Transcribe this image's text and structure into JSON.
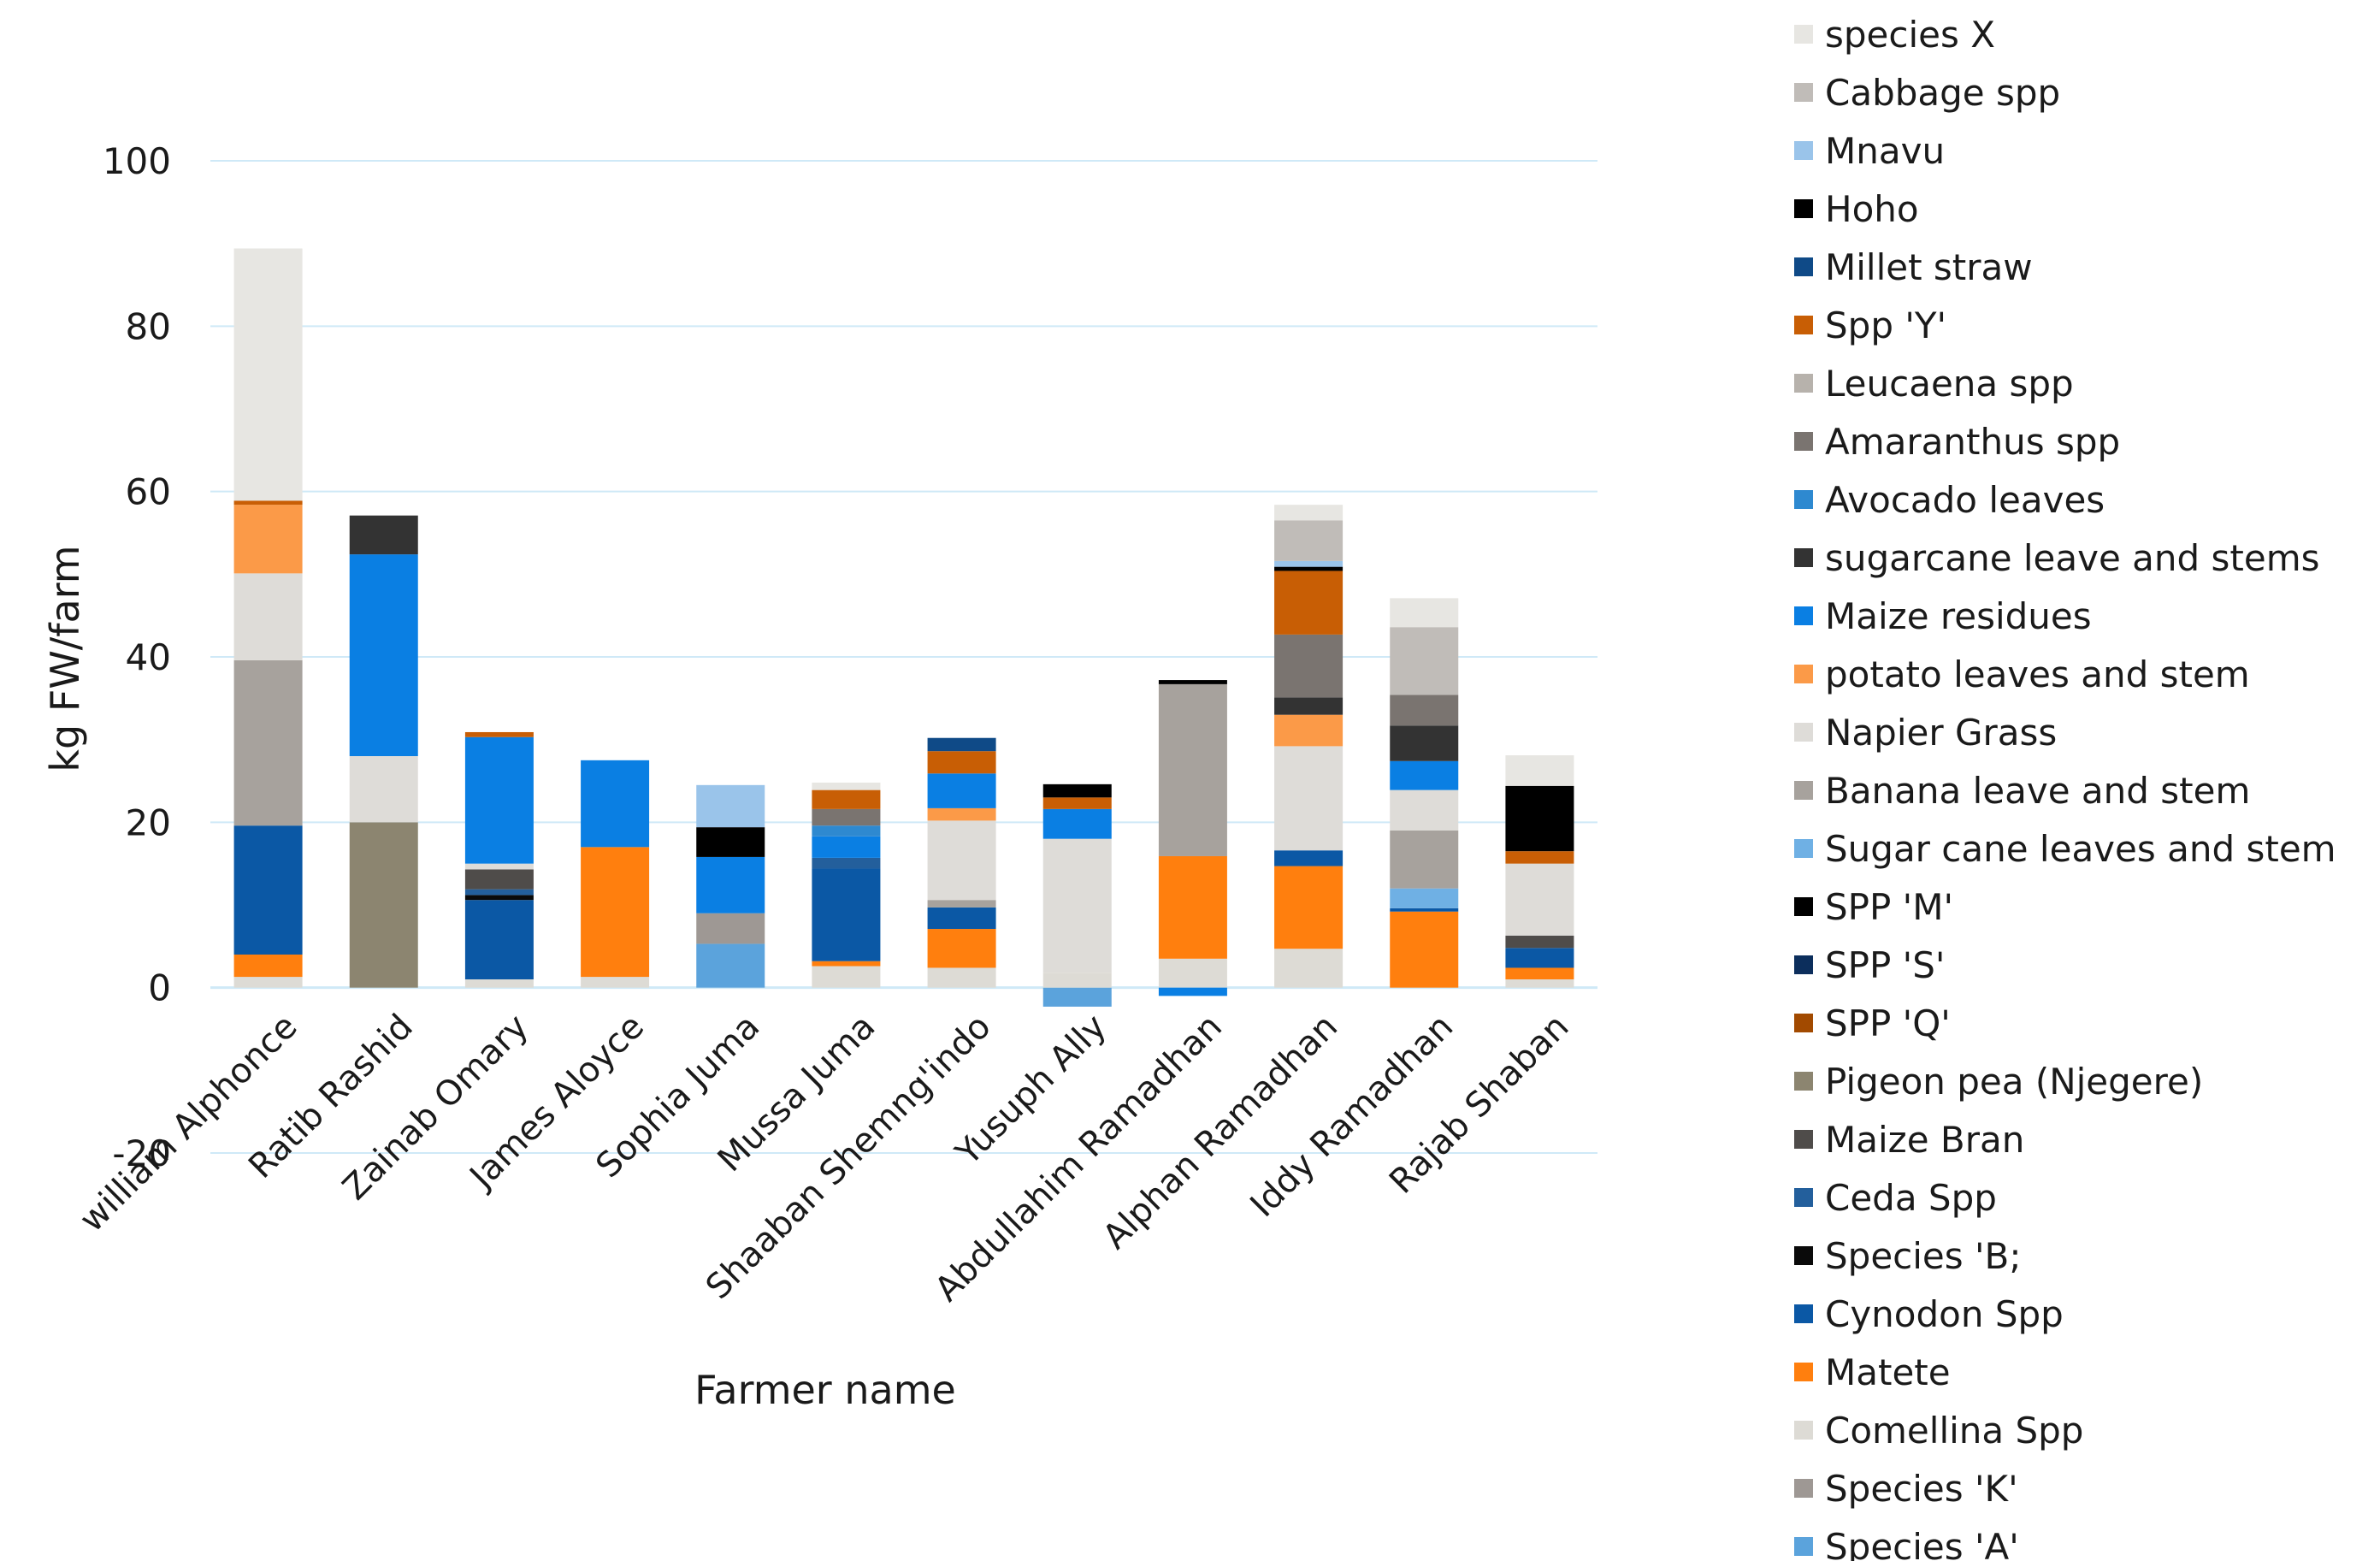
{
  "chart_data": {
    "type": "bar",
    "stacked": true,
    "xlabel": "Farmer name",
    "ylabel": "kg FW/farm",
    "ylim": [
      -20,
      100
    ],
    "yticks": [
      -20,
      0,
      20,
      40,
      60,
      80,
      100
    ],
    "grid": true,
    "legend_position": "right",
    "categories": [
      "william Alphonce",
      "Ratib Rashid",
      "Zainab Omary",
      "James Aloyce",
      "Sophia Juma",
      "Mussa Juma",
      "Shaaban Shemng'indo",
      "Yusuph Ally",
      "Abdullahim Ramadhan",
      "Alphan Ramadhan",
      "Iddy Ramadhan",
      "Rajab Shaban"
    ],
    "series": [
      {
        "name": "Species 'A'",
        "color": "#5ba3dc",
        "values": [
          0,
          0,
          0,
          0,
          5.3,
          0,
          0,
          -2.3,
          0,
          0,
          0,
          0
        ]
      },
      {
        "name": "Species 'K'",
        "color": "#9e9894",
        "values": [
          0,
          0,
          0,
          0,
          3.7,
          0,
          0,
          0,
          0,
          0,
          0,
          0
        ]
      },
      {
        "name": "Comellina Spp",
        "color": "#dddbd5",
        "values": [
          1.3,
          0,
          1,
          1.3,
          0,
          2.6,
          2.4,
          1.8,
          3.5,
          4.7,
          0,
          1
        ]
      },
      {
        "name": "Matete",
        "color": "#ff7f0e",
        "values": [
          2.7,
          0,
          0,
          15.7,
          0,
          0.6,
          4.7,
          0,
          12.4,
          10,
          9.2,
          1.4
        ]
      },
      {
        "name": "Cynodon Spp",
        "color": "#0b58a5",
        "values": [
          15.6,
          0,
          9.6,
          0,
          0,
          11.2,
          2.6,
          0,
          0,
          1.9,
          0.4,
          2.4
        ]
      },
      {
        "name": "Species 'B;",
        "color": "#0a0a0a",
        "values": [
          0,
          0,
          0.6,
          0,
          0,
          0,
          0,
          0,
          0,
          0,
          0,
          0
        ]
      },
      {
        "name": "Ceda Spp",
        "color": "#235f9c",
        "values": [
          0,
          0,
          0.7,
          0,
          0,
          1.3,
          0,
          0,
          0,
          0,
          0,
          0
        ]
      },
      {
        "name": "Maize Bran",
        "color": "#4f4c4a",
        "values": [
          0,
          0,
          2.4,
          0,
          0,
          0,
          0,
          0,
          0,
          0,
          0,
          1.5
        ]
      },
      {
        "name": "Pigeon pea (Njegere)",
        "color": "#8c8570",
        "values": [
          0,
          20,
          0,
          0,
          0,
          0,
          0,
          0,
          0,
          0,
          0,
          0
        ]
      },
      {
        "name": "SPP 'Q'",
        "color": "#a24a00",
        "values": [
          0,
          0,
          0,
          0,
          0,
          0,
          0,
          0,
          0,
          0,
          0,
          0
        ]
      },
      {
        "name": "SPP 'S'",
        "color": "#0c2e5c",
        "values": [
          0,
          0,
          0,
          0,
          0,
          0,
          0,
          0,
          0,
          0,
          0,
          0
        ]
      },
      {
        "name": "SPP 'M'",
        "color": "#000000",
        "values": [
          0,
          0,
          0,
          0,
          0,
          0,
          0,
          0,
          0,
          0,
          0,
          0
        ]
      },
      {
        "name": "Sugar cane leaves and stem",
        "color": "#6fb0e4",
        "values": [
          0,
          0,
          0,
          0,
          0,
          0,
          0,
          0,
          0,
          0,
          2.4,
          0
        ]
      },
      {
        "name": "Banana leave and stem",
        "color": "#a7a29d",
        "values": [
          20,
          0,
          0,
          0,
          0,
          0,
          0.9,
          0,
          20.8,
          0,
          7,
          0
        ]
      },
      {
        "name": "Napier Grass",
        "color": "#dedcd8",
        "values": [
          10.5,
          8,
          0.7,
          0,
          0,
          0,
          9.6,
          16.2,
          0,
          12.6,
          4.9,
          8.7
        ]
      },
      {
        "name": "potato leaves and stem",
        "color": "#fb9a48",
        "values": [
          8.3,
          0,
          0,
          0,
          0,
          0,
          1.5,
          0,
          0,
          3.8,
          0,
          0
        ]
      },
      {
        "name": "Maize residues",
        "color": "#0a7fe3",
        "values": [
          0,
          24.4,
          15.3,
          10.5,
          6.8,
          2.6,
          4.2,
          3.6,
          -1,
          0,
          3.5,
          0
        ]
      },
      {
        "name": "sugarcane leave and stems",
        "color": "#333333",
        "values": [
          0,
          4.7,
          0,
          0,
          0,
          0,
          0,
          0,
          0,
          2.1,
          4.3,
          0
        ]
      },
      {
        "name": "Avocado leaves",
        "color": "#2e89d0",
        "values": [
          0,
          0,
          0,
          0,
          0,
          1.3,
          0,
          0,
          0,
          0,
          0,
          0
        ]
      },
      {
        "name": "Amaranthus spp",
        "color": "#7a7470",
        "values": [
          0,
          0,
          0,
          0,
          0,
          2,
          0,
          0,
          0,
          7.6,
          3.7,
          0
        ]
      },
      {
        "name": "Leucaena spp",
        "color": "#b7b2ac",
        "values": [
          0,
          0,
          0,
          0,
          0,
          0,
          0,
          0,
          0,
          0,
          0,
          0
        ]
      },
      {
        "name": "Spp 'Y'",
        "color": "#c85e05",
        "values": [
          0.5,
          0,
          0.6,
          0,
          0,
          2.3,
          2.7,
          1.4,
          0,
          7.7,
          0,
          1.5
        ]
      },
      {
        "name": "Millet straw",
        "color": "#0f4a87",
        "values": [
          0,
          0,
          0,
          0,
          0,
          0,
          1.6,
          0,
          0,
          0,
          0,
          0
        ]
      },
      {
        "name": "Hoho",
        "color": "#000000",
        "values": [
          0,
          0,
          0,
          0,
          3.6,
          0,
          0,
          1.6,
          0.5,
          0.5,
          0,
          7.9
        ]
      },
      {
        "name": "Mnavu",
        "color": "#9ac4ea",
        "values": [
          0,
          0,
          0,
          0,
          5.1,
          0,
          0,
          0,
          0,
          0.7,
          0,
          0
        ]
      },
      {
        "name": "Cabbage spp",
        "color": "#c0bcb8",
        "values": [
          0,
          0,
          0,
          0,
          0,
          0,
          0,
          0,
          0,
          4.9,
          8.2,
          0
        ]
      },
      {
        "name": "species X",
        "color": "#e7e6e2",
        "values": [
          30.5,
          0,
          0,
          0,
          0,
          0.9,
          0,
          0,
          0,
          1.9,
          3.5,
          3.7
        ]
      }
    ]
  }
}
